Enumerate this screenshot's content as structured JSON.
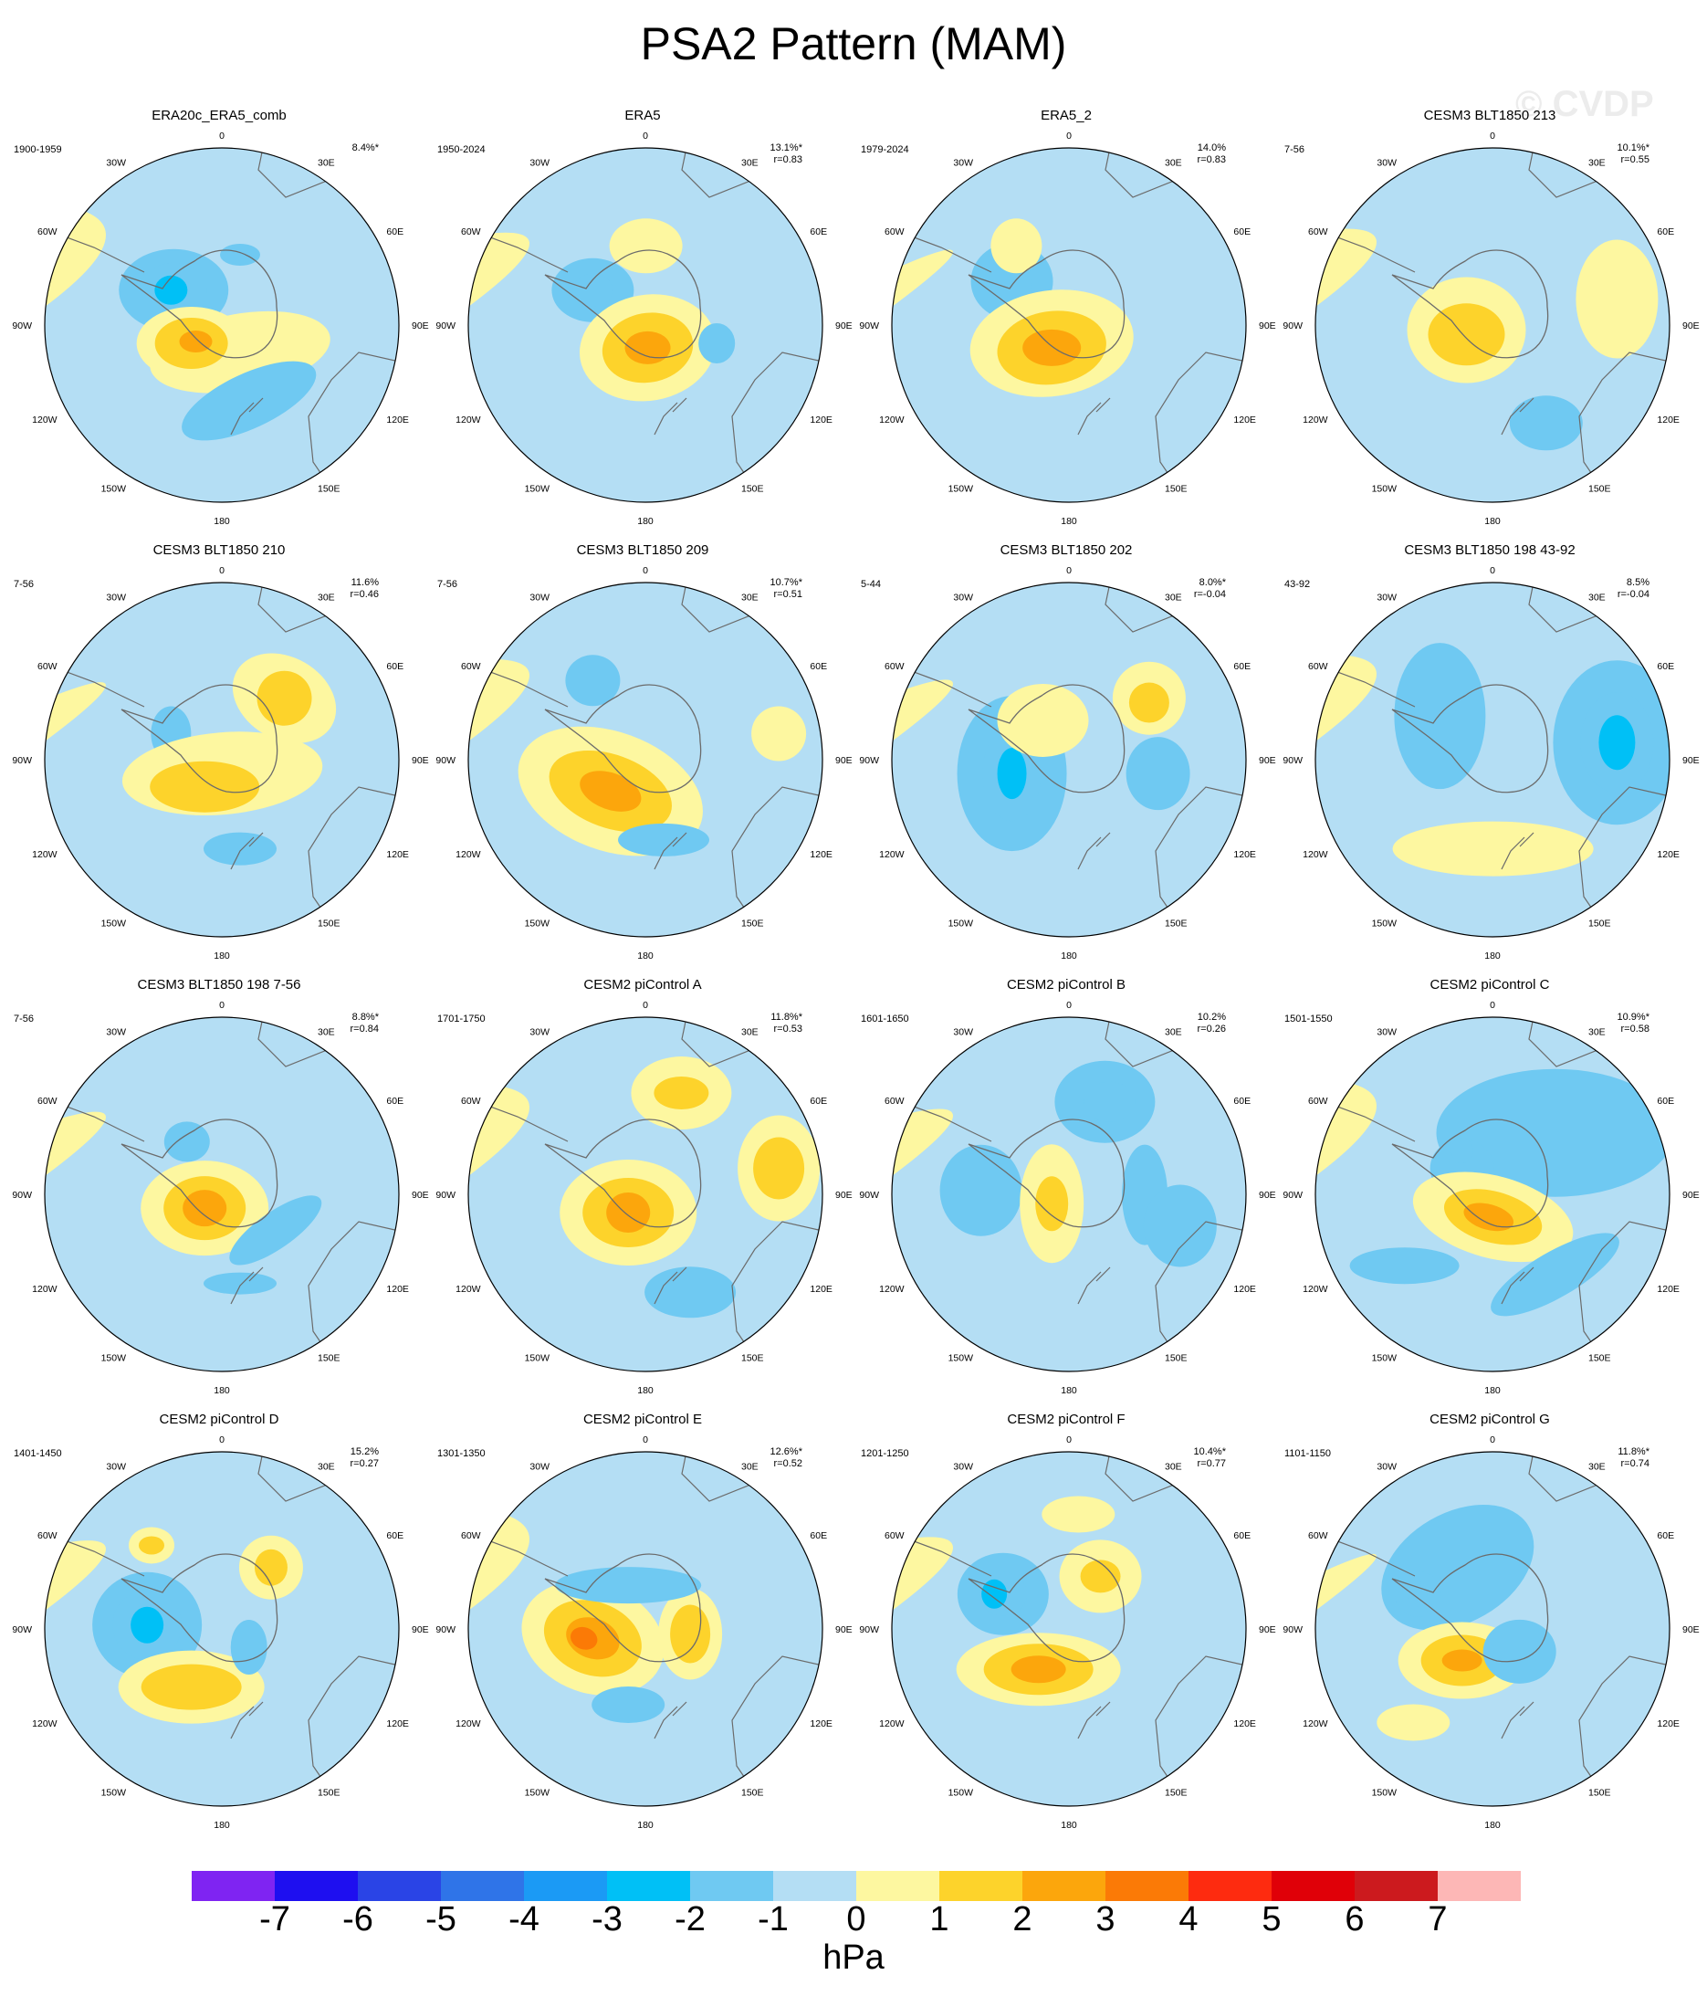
{
  "title": "PSA2 Pattern (MAM)",
  "watermark": "© CVDP",
  "map_labels": {
    "top": "0",
    "bottom": "180",
    "left": "90W",
    "right": "90E",
    "upper_left_30": "30W",
    "upper_right_30": "30E",
    "upper_left_60": "60W",
    "upper_right_60": "60E",
    "lower_left_120": "120W",
    "lower_right_120": "120E",
    "lower_left_150": "150W",
    "lower_right_150": "150E"
  },
  "panels": [
    {
      "title": "ERA20c_ERA5_comb",
      "years": "1900-1959",
      "pct": "8.4%*",
      "r": ""
    },
    {
      "title": "ERA5",
      "years": "1950-2024",
      "pct": "13.1%*",
      "r": "r=0.83"
    },
    {
      "title": "ERA5_2",
      "years": "1979-2024",
      "pct": "14.0%",
      "r": "r=0.83"
    },
    {
      "title": "CESM3 BLT1850 213",
      "years": "7-56",
      "pct": "10.1%*",
      "r": "r=0.55"
    },
    {
      "title": "CESM3 BLT1850 210",
      "years": "7-56",
      "pct": "11.6%",
      "r": "r=0.46"
    },
    {
      "title": "CESM3 BLT1850 209",
      "years": "7-56",
      "pct": "10.7%*",
      "r": "r=0.51"
    },
    {
      "title": "CESM3 BLT1850 202",
      "years": "5-44",
      "pct": "8.0%*",
      "r": "r=-0.04"
    },
    {
      "title": "CESM3 BLT1850 198 43-92",
      "years": "43-92",
      "pct": "8.5%",
      "r": "r=-0.04"
    },
    {
      "title": "CESM3 BLT1850 198 7-56",
      "years": "7-56",
      "pct": "8.8%*",
      "r": "r=0.84"
    },
    {
      "title": "CESM2 piControl A",
      "years": "1701-1750",
      "pct": "11.8%*",
      "r": "r=0.53"
    },
    {
      "title": "CESM2 piControl B",
      "years": "1601-1650",
      "pct": "10.2%",
      "r": "r=0.26"
    },
    {
      "title": "CESM2 piControl C",
      "years": "1501-1550",
      "pct": "10.9%*",
      "r": "r=0.58"
    },
    {
      "title": "CESM2 piControl D",
      "years": "1401-1450",
      "pct": "15.2%",
      "r": "r=0.27"
    },
    {
      "title": "CESM2 piControl E",
      "years": "1301-1350",
      "pct": "12.6%*",
      "r": "r=0.52"
    },
    {
      "title": "CESM2 piControl F",
      "years": "1201-1250",
      "pct": "10.4%*",
      "r": "r=0.77"
    },
    {
      "title": "CESM2 piControl G",
      "years": "1101-1150",
      "pct": "11.8%*",
      "r": "r=0.74"
    }
  ],
  "colorbar": {
    "colors": [
      "#7f24f2",
      "#1e0ff0",
      "#2a44e6",
      "#2f74e8",
      "#1b9af5",
      "#00c0f6",
      "#6fc9f2",
      "#b4def4",
      "#fdf7a0",
      "#fdd32b",
      "#fca60c",
      "#fb7a06",
      "#fe2b0f",
      "#e00008",
      "#cc1a1e",
      "#fdb7b6"
    ],
    "ticks": [
      "-7",
      "-6",
      "-5",
      "-4",
      "-3",
      "-2",
      "-1",
      "0",
      "1",
      "2",
      "3",
      "4",
      "5",
      "6",
      "7"
    ],
    "units": "hPa"
  },
  "colors": {
    "negative_fill": "#b4def4",
    "positive_fill": "#fdf7a0",
    "coast": "#6b6b6b"
  }
}
